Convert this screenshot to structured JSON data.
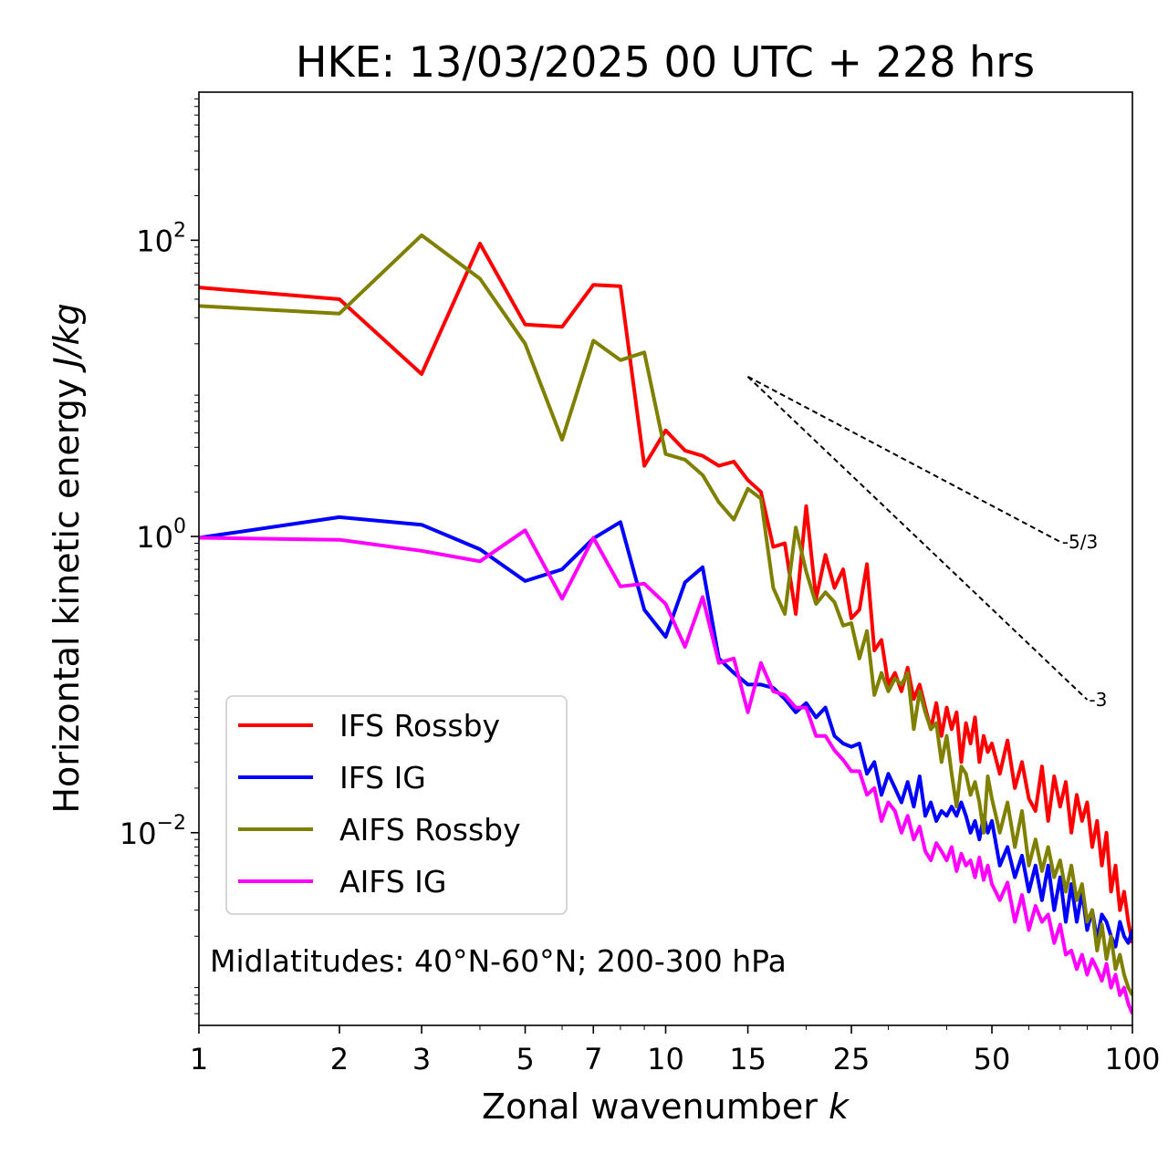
{
  "chart_data": {
    "type": "line",
    "title": "HKE: 13/03/2025 00 UTC + 228 hrs",
    "xlabel": "Zonal wavenumber",
    "xlabel_symbol": "k",
    "ylabel": "Horizontal kinetic energy",
    "ylabel_unit": "J/kg",
    "x_scale": "log",
    "y_scale": "log",
    "xlim": [
      1,
      100
    ],
    "ylim": [
      0.0005,
      1000
    ],
    "xticks": [
      1,
      2,
      3,
      5,
      7,
      10,
      15,
      25,
      50,
      100
    ],
    "xtick_labels": [
      "1",
      "2",
      "3",
      "5",
      "7",
      "10",
      "15",
      "25",
      "50",
      "100"
    ],
    "yticks": [
      {
        "value": 100,
        "base": "10",
        "exp": "2"
      },
      {
        "value": 1,
        "base": "10",
        "exp": "0"
      },
      {
        "value": 0.01,
        "base": "10",
        "exp": "−2"
      }
    ],
    "legend_position": "lower-left",
    "annotation": "Midlatitudes: 40°N-60°N; 200-300 hPa",
    "reference_slopes": [
      {
        "label": "-5/3",
        "slope": -1.6667,
        "x_start": 15,
        "x_end": 70,
        "y_start": 12
      },
      {
        "label": "-3",
        "slope": -3,
        "x_start": 15,
        "x_end": 80,
        "y_start": 12
      }
    ],
    "series": [
      {
        "name": "IFS Rossby",
        "color": "#ff0000",
        "x": [
          1,
          2,
          3,
          4,
          5,
          6,
          7,
          8,
          9,
          10,
          11,
          12,
          13,
          14,
          15,
          16,
          17,
          18,
          19,
          20,
          21,
          22,
          23,
          24,
          25,
          26,
          27,
          28,
          29,
          30,
          31,
          32,
          33,
          34,
          35,
          36,
          37,
          38,
          39,
          40,
          41,
          42,
          43,
          44,
          45,
          46,
          47,
          48,
          49,
          50,
          52,
          54,
          56,
          58,
          60,
          62,
          64,
          66,
          68,
          70,
          72,
          74,
          76,
          78,
          80,
          82,
          84,
          86,
          88,
          90,
          92,
          94,
          96,
          98,
          100
        ],
        "y": [
          48,
          40,
          12.5,
          95,
          27,
          26,
          50,
          49,
          3.0,
          5.2,
          3.8,
          3.5,
          3.0,
          3.2,
          2.4,
          2.0,
          0.85,
          0.9,
          0.3,
          1.6,
          0.38,
          0.75,
          0.45,
          0.6,
          0.28,
          0.32,
          0.65,
          0.17,
          0.2,
          0.1,
          0.12,
          0.09,
          0.13,
          0.08,
          0.1,
          0.07,
          0.05,
          0.075,
          0.045,
          0.07,
          0.05,
          0.065,
          0.03,
          0.055,
          0.04,
          0.06,
          0.03,
          0.045,
          0.035,
          0.04,
          0.025,
          0.042,
          0.02,
          0.03,
          0.017,
          0.014,
          0.028,
          0.012,
          0.024,
          0.015,
          0.022,
          0.01,
          0.018,
          0.012,
          0.016,
          0.008,
          0.012,
          0.006,
          0.01,
          0.004,
          0.006,
          0.003,
          0.004,
          0.0025,
          0.0018
        ]
      },
      {
        "name": "IFS IG",
        "color": "#0000ff",
        "x": [
          1,
          2,
          3,
          4,
          5,
          6,
          7,
          8,
          9,
          10,
          11,
          12,
          13,
          14,
          15,
          16,
          17,
          18,
          19,
          20,
          21,
          22,
          23,
          24,
          25,
          26,
          27,
          28,
          29,
          30,
          31,
          32,
          33,
          34,
          35,
          36,
          37,
          38,
          39,
          40,
          41,
          42,
          43,
          44,
          45,
          46,
          47,
          48,
          49,
          50,
          52,
          54,
          56,
          58,
          60,
          62,
          64,
          66,
          68,
          70,
          72,
          74,
          76,
          78,
          80,
          82,
          84,
          86,
          88,
          90,
          92,
          94,
          96,
          98,
          100
        ],
        "y": [
          0.98,
          1.35,
          1.2,
          0.82,
          0.5,
          0.6,
          0.97,
          1.25,
          0.32,
          0.21,
          0.49,
          0.62,
          0.15,
          0.12,
          0.1,
          0.1,
          0.095,
          0.08,
          0.065,
          0.075,
          0.06,
          0.07,
          0.045,
          0.04,
          0.038,
          0.04,
          0.025,
          0.03,
          0.018,
          0.025,
          0.02,
          0.016,
          0.022,
          0.015,
          0.024,
          0.013,
          0.016,
          0.012,
          0.014,
          0.013,
          0.015,
          0.013,
          0.016,
          0.013,
          0.01,
          0.012,
          0.009,
          0.013,
          0.01,
          0.012,
          0.006,
          0.008,
          0.005,
          0.007,
          0.004,
          0.006,
          0.0035,
          0.006,
          0.003,
          0.005,
          0.0025,
          0.0045,
          0.0025,
          0.004,
          0.0022,
          0.003,
          0.0019,
          0.0028,
          0.0025,
          0.002,
          0.0017,
          0.0025,
          0.002,
          0.0018,
          0.0022
        ]
      },
      {
        "name": "AIFS Rossby",
        "color": "#808000",
        "x": [
          1,
          2,
          3,
          4,
          5,
          6,
          7,
          8,
          9,
          10,
          11,
          12,
          13,
          14,
          15,
          16,
          17,
          18,
          19,
          20,
          21,
          22,
          23,
          24,
          25,
          26,
          27,
          28,
          29,
          30,
          31,
          32,
          33,
          34,
          35,
          36,
          37,
          38,
          39,
          40,
          41,
          42,
          43,
          44,
          45,
          46,
          47,
          48,
          49,
          50,
          52,
          54,
          56,
          58,
          60,
          62,
          64,
          66,
          68,
          70,
          72,
          74,
          76,
          78,
          80,
          82,
          84,
          86,
          88,
          90,
          92,
          94,
          96,
          98,
          100
        ],
        "y": [
          36,
          32,
          108,
          55,
          20,
          4.5,
          21,
          15.5,
          17.5,
          3.6,
          3.3,
          2.6,
          1.7,
          1.3,
          2.1,
          1.8,
          0.45,
          0.3,
          1.15,
          0.58,
          0.35,
          0.42,
          0.36,
          0.25,
          0.26,
          0.15,
          0.23,
          0.085,
          0.12,
          0.09,
          0.11,
          0.1,
          0.12,
          0.05,
          0.09,
          0.065,
          0.05,
          0.055,
          0.03,
          0.045,
          0.025,
          0.015,
          0.028,
          0.025,
          0.018,
          0.022,
          0.016,
          0.01,
          0.024,
          0.017,
          0.01,
          0.016,
          0.008,
          0.014,
          0.006,
          0.009,
          0.0055,
          0.008,
          0.005,
          0.0065,
          0.004,
          0.006,
          0.0035,
          0.0045,
          0.0025,
          0.003,
          0.0016,
          0.0024,
          0.0014,
          0.002,
          0.0012,
          0.0015,
          0.0011,
          0.0009,
          0.0008
        ]
      },
      {
        "name": "AIFS IG",
        "color": "#ff00ff",
        "x": [
          1,
          2,
          3,
          4,
          5,
          6,
          7,
          8,
          9,
          10,
          11,
          12,
          13,
          14,
          15,
          16,
          17,
          18,
          19,
          20,
          21,
          22,
          23,
          24,
          25,
          26,
          27,
          28,
          29,
          30,
          31,
          32,
          33,
          34,
          35,
          36,
          37,
          38,
          39,
          40,
          41,
          42,
          43,
          44,
          45,
          46,
          47,
          48,
          49,
          50,
          52,
          54,
          56,
          58,
          60,
          62,
          64,
          66,
          68,
          70,
          72,
          74,
          76,
          78,
          80,
          82,
          84,
          86,
          88,
          90,
          92,
          94,
          96,
          98,
          100
        ],
        "y": [
          0.98,
          0.95,
          0.8,
          0.68,
          1.1,
          0.38,
          0.98,
          0.46,
          0.48,
          0.35,
          0.18,
          0.39,
          0.14,
          0.15,
          0.065,
          0.14,
          0.09,
          0.085,
          0.07,
          0.07,
          0.045,
          0.045,
          0.036,
          0.031,
          0.026,
          0.026,
          0.018,
          0.02,
          0.012,
          0.016,
          0.014,
          0.01,
          0.013,
          0.009,
          0.011,
          0.0075,
          0.0065,
          0.0085,
          0.0075,
          0.0065,
          0.008,
          0.0055,
          0.0072,
          0.006,
          0.0065,
          0.005,
          0.0068,
          0.0048,
          0.006,
          0.0045,
          0.0035,
          0.0046,
          0.0025,
          0.0038,
          0.0022,
          0.0032,
          0.0025,
          0.0028,
          0.0018,
          0.0024,
          0.0015,
          0.0016,
          0.0012,
          0.0015,
          0.0011,
          0.0014,
          0.0012,
          0.001,
          0.0013,
          0.0009,
          0.0011,
          0.0008,
          0.0009,
          0.0007,
          0.0006
        ]
      }
    ]
  }
}
